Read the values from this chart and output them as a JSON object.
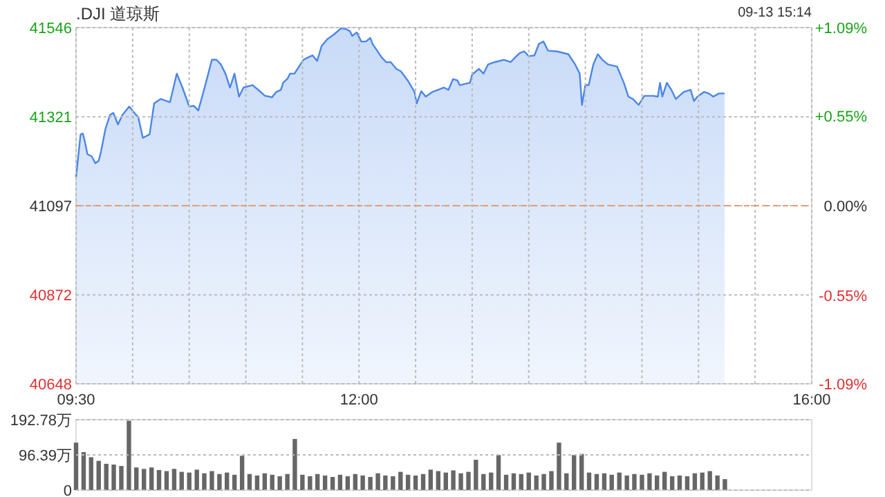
{
  "chart_data": [
    {
      "type": "area",
      "title": ".DJI 道琼斯",
      "subtitle": "09-13 15:14",
      "xlim": [
        9.5,
        16
      ],
      "xticks": [
        {
          "value": 9.5,
          "label": "09:30"
        },
        {
          "value": 10,
          "label": null
        },
        {
          "value": 10.5,
          "label": null
        },
        {
          "value": 11,
          "label": null
        },
        {
          "value": 11.5,
          "label": null
        },
        {
          "value": 12,
          "label": "12:00"
        },
        {
          "value": 12.5,
          "label": null
        },
        {
          "value": 13,
          "label": null
        },
        {
          "value": 13.5,
          "label": null
        },
        {
          "value": 14,
          "label": null
        },
        {
          "value": 14.5,
          "label": null
        },
        {
          "value": 15,
          "label": null
        },
        {
          "value": 15.5,
          "label": null
        },
        {
          "value": 16,
          "label": "16:00"
        }
      ],
      "ylim": [
        40648,
        41546
      ],
      "yticks": [
        40648,
        40872,
        41097,
        41321,
        41546
      ],
      "y2lim": [
        -1.09,
        1.09
      ],
      "y2ticks": [
        {
          "value": -1.09,
          "label": "-1.09%"
        },
        {
          "value": -0.55,
          "label": "-0.55%"
        },
        {
          "value": 0,
          "label": "0.00%"
        },
        {
          "value": 0.55,
          "label": "+0.55%"
        },
        {
          "value": 1.09,
          "label": "+1.09%"
        }
      ],
      "grid": true,
      "ref_lines": [
        {
          "axis": "y",
          "value": 41097,
          "label": null,
          "color": "#e89a6e",
          "line_style": "dashed"
        }
      ],
      "series": [
        {
          "color": "#4a86e8",
          "x": [
            9.5,
            9.54,
            9.56,
            9.58,
            9.6,
            9.64,
            9.67,
            9.7,
            9.72,
            9.76,
            9.8,
            9.83,
            9.87,
            9.91,
            9.97,
            10.03,
            10.05,
            10.09,
            10.15,
            10.19,
            10.23,
            10.25,
            10.33,
            10.39,
            10.44,
            10.5,
            10.54,
            10.58,
            10.62,
            10.66,
            10.7,
            10.74,
            10.78,
            10.82,
            10.86,
            10.9,
            10.94,
            10.98,
            11.06,
            11.11,
            11.17,
            11.21,
            11.23,
            11.27,
            11.31,
            11.33,
            11.37,
            11.39,
            11.43,
            11.47,
            11.51,
            11.55,
            11.59,
            11.63,
            11.67,
            11.72,
            11.78,
            11.84,
            11.88,
            11.92,
            11.94,
            11.98,
            12.02,
            12.06,
            12.1,
            12.12,
            12.16,
            12.2,
            12.24,
            12.28,
            12.33,
            12.37,
            12.43,
            12.49,
            12.51,
            12.55,
            12.59,
            12.65,
            12.75,
            12.79,
            12.83,
            12.87,
            12.89,
            12.98,
            13,
            13.06,
            13.1,
            13.14,
            13.2,
            13.28,
            13.34,
            13.38,
            13.42,
            13.46,
            13.5,
            13.55,
            13.59,
            13.63,
            13.67,
            13.75,
            13.85,
            13.91,
            13.95,
            13.97,
            14,
            14.03,
            14.07,
            14.11,
            14.15,
            14.2,
            14.28,
            14.34,
            14.38,
            14.42,
            14.47,
            14.52,
            14.6,
            14.64,
            14.66,
            14.68,
            14.72,
            14.76,
            14.8,
            14.87,
            14.93,
            14.96,
            14.99,
            15.05,
            15.09,
            15.13,
            15.18,
            15.23
          ],
          "values": [
            41169,
            41277,
            41279,
            41256,
            41227,
            41221,
            41204,
            41210,
            41233,
            41291,
            41326,
            41331,
            41302,
            41326,
            41347,
            41326,
            41320,
            41268,
            41277,
            41355,
            41363,
            41366,
            41358,
            41430,
            41395,
            41347,
            41349,
            41337,
            41378,
            41421,
            41465,
            41465,
            41453,
            41430,
            41395,
            41430,
            41372,
            41395,
            41401,
            41389,
            41374,
            41372,
            41370,
            41384,
            41389,
            41407,
            41418,
            41430,
            41430,
            41448,
            41465,
            41471,
            41476,
            41462,
            41500,
            41517,
            41529,
            41544,
            41543,
            41537,
            41525,
            41534,
            41511,
            41511,
            41520,
            41505,
            41488,
            41471,
            41459,
            41459,
            41442,
            41436,
            41413,
            41384,
            41355,
            41386,
            41372,
            41384,
            41395,
            41389,
            41416,
            41413,
            41401,
            41407,
            41428,
            41442,
            41430,
            41453,
            41459,
            41465,
            41459,
            41471,
            41482,
            41486,
            41474,
            41476,
            41505,
            41511,
            41488,
            41486,
            41479,
            41453,
            41430,
            41351,
            41401,
            41401,
            41453,
            41479,
            41465,
            41453,
            41448,
            41407,
            41372,
            41366,
            41351,
            41374,
            41374,
            41372,
            41407,
            41372,
            41407,
            41389,
            41366,
            41384,
            41389,
            41361,
            41372,
            41384,
            41380,
            41372,
            41380,
            41380
          ]
        }
      ]
    },
    {
      "type": "bar",
      "xlim": [
        9.5,
        16
      ],
      "tick_labels": "y",
      "grid": "y",
      "ylim": [
        0,
        192.78
      ],
      "yticks": [
        0,
        {
          "value": 96.39,
          "label": "96.39万"
        },
        {
          "value": 192.78,
          "label": "192.78万"
        }
      ],
      "series": [
        {
          "color": "#666666",
          "x": [
            9.5,
            9.567,
            9.633,
            9.7,
            9.767,
            9.833,
            9.9,
            9.967,
            10.033,
            10.1,
            10.167,
            10.233,
            10.3,
            10.367,
            10.433,
            10.5,
            10.567,
            10.633,
            10.7,
            10.767,
            10.833,
            10.9,
            10.967,
            11.033,
            11.1,
            11.167,
            11.233,
            11.3,
            11.367,
            11.433,
            11.5,
            11.567,
            11.633,
            11.7,
            11.767,
            11.833,
            11.9,
            11.967,
            12.033,
            12.1,
            12.167,
            12.233,
            12.3,
            12.367,
            12.433,
            12.5,
            12.567,
            12.633,
            12.7,
            12.767,
            12.833,
            12.9,
            12.967,
            13.033,
            13.1,
            13.167,
            13.233,
            13.3,
            13.367,
            13.433,
            13.5,
            13.567,
            13.633,
            13.7,
            13.767,
            13.833,
            13.9,
            13.967,
            14.033,
            14.1,
            14.167,
            14.233,
            14.3,
            14.367,
            14.433,
            14.5,
            14.567,
            14.633,
            14.7,
            14.767,
            14.833,
            14.9,
            14.967,
            15.033,
            15.1,
            15.167,
            15.233
          ],
          "values": [
            130,
            104,
            90,
            80,
            72,
            70,
            66,
            190,
            62,
            58,
            62,
            55,
            52,
            58,
            50,
            48,
            56,
            46,
            52,
            44,
            48,
            42,
            94,
            44,
            40,
            46,
            42,
            38,
            44,
            140,
            42,
            38,
            44,
            40,
            36,
            42,
            38,
            44,
            40,
            36,
            46,
            40,
            38,
            50,
            42,
            40,
            44,
            56,
            52,
            48,
            54,
            46,
            50,
            83,
            44,
            48,
            96,
            42,
            46,
            44,
            48,
            40,
            44,
            52,
            130,
            46,
            96,
            99,
            48,
            44,
            46,
            42,
            48,
            40,
            44,
            42,
            46,
            40,
            50,
            38,
            40,
            38,
            46,
            48,
            52,
            40,
            30
          ]
        }
      ]
    }
  ]
}
